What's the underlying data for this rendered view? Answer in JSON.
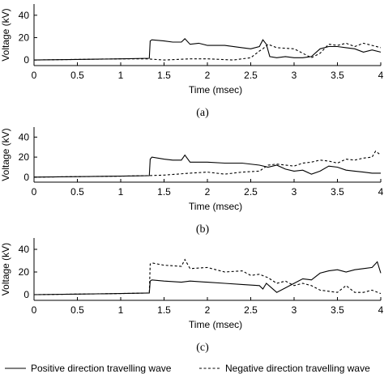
{
  "chart_data": [
    {
      "type": "line",
      "caption": "(a)",
      "xlabel": "Time (msec)",
      "ylabel": "Voltage (kV)",
      "xlim": [
        0,
        4
      ],
      "ylim": [
        -5,
        50
      ],
      "x_ticks": [
        0,
        0.5,
        1,
        1.5,
        2,
        2.5,
        3,
        3.5,
        4
      ],
      "x_tick_labels": [
        "0",
        "0.5",
        "1",
        "1.5",
        "2",
        "2.5",
        "3",
        "3.5",
        "4"
      ],
      "y_ticks": [
        0,
        20,
        40
      ],
      "y_tick_labels": [
        "0",
        "20",
        "40"
      ],
      "series": [
        {
          "name": "Positive direction travelling wave",
          "style": "solid",
          "x": [
            0,
            0.5,
            1.0,
            1.33,
            1.34,
            1.36,
            1.5,
            1.6,
            1.7,
            1.74,
            1.8,
            1.9,
            2.0,
            2.2,
            2.4,
            2.5,
            2.6,
            2.64,
            2.68,
            2.72,
            2.8,
            2.9,
            3.0,
            3.1,
            3.2,
            3.3,
            3.4,
            3.5,
            3.6,
            3.7,
            3.8,
            3.9,
            4.0
          ],
          "y": [
            0,
            0.5,
            1,
            1.5,
            17,
            18,
            17,
            16,
            16,
            19,
            14,
            15,
            13,
            13,
            11,
            10,
            12,
            18,
            14,
            3,
            2,
            3,
            2,
            2,
            3,
            10,
            12,
            12,
            11,
            10,
            7,
            9,
            7
          ]
        },
        {
          "name": "Negative direction travelling wave",
          "style": "dashed",
          "x": [
            0,
            0.5,
            1.0,
            1.3,
            1.5,
            1.8,
            2.0,
            2.3,
            2.5,
            2.6,
            2.64,
            2.7,
            2.8,
            3.0,
            3.1,
            3.2,
            3.3,
            3.4,
            3.5,
            3.6,
            3.7,
            3.8,
            3.9,
            4.0
          ],
          "y": [
            0,
            0.5,
            1,
            1,
            0,
            1,
            1,
            0,
            2,
            8,
            10,
            14,
            11,
            10,
            6,
            2,
            6,
            14,
            13,
            15,
            12,
            15,
            13,
            11
          ]
        }
      ]
    },
    {
      "type": "line",
      "caption": "(b)",
      "xlabel": "Time (msec)",
      "ylabel": "Voltage (kV)",
      "xlim": [
        0,
        4
      ],
      "ylim": [
        -5,
        50
      ],
      "x_ticks": [
        0,
        0.5,
        1,
        1.5,
        2,
        2.5,
        3,
        3.5,
        4
      ],
      "x_tick_labels": [
        "0",
        "0.5",
        "1",
        "1.5",
        "2",
        "2.5",
        "3",
        "3.5",
        "4"
      ],
      "y_ticks": [
        0,
        20,
        40
      ],
      "y_tick_labels": [
        "0",
        "20",
        "40"
      ],
      "series": [
        {
          "name": "Positive direction travelling wave",
          "style": "solid",
          "x": [
            0,
            0.5,
            1.0,
            1.33,
            1.34,
            1.36,
            1.5,
            1.6,
            1.7,
            1.74,
            1.8,
            2.0,
            2.2,
            2.4,
            2.6,
            2.7,
            2.8,
            2.9,
            3.0,
            3.1,
            3.2,
            3.3,
            3.4,
            3.5,
            3.6,
            3.7,
            3.8,
            3.9,
            4.0
          ],
          "y": [
            0,
            0.5,
            1,
            1.5,
            18,
            20,
            18,
            17,
            17,
            22,
            15,
            15,
            14,
            14,
            12,
            10,
            12,
            8,
            6,
            7,
            3,
            6,
            11,
            10,
            7,
            6,
            5,
            4,
            4
          ]
        },
        {
          "name": "Negative direction travelling wave",
          "style": "dashed",
          "x": [
            0,
            0.5,
            1.0,
            1.3,
            1.5,
            1.8,
            2.0,
            2.2,
            2.4,
            2.6,
            2.7,
            2.8,
            3.0,
            3.1,
            3.2,
            3.3,
            3.4,
            3.5,
            3.6,
            3.7,
            3.8,
            3.9,
            3.94,
            4.0
          ],
          "y": [
            0,
            0.5,
            1,
            1.5,
            2,
            4,
            5,
            3,
            5,
            6,
            12,
            13,
            11,
            14,
            15,
            17,
            16,
            14,
            18,
            17,
            19,
            20,
            26,
            22
          ]
        }
      ]
    },
    {
      "type": "line",
      "caption": "(c)",
      "xlabel": "Time (msec)",
      "ylabel": "Voltage (kV)",
      "xlim": [
        0,
        4
      ],
      "ylim": [
        -5,
        50
      ],
      "x_ticks": [
        0,
        0.5,
        1,
        1.5,
        2,
        2.5,
        3,
        3.5,
        4
      ],
      "x_tick_labels": [
        "0",
        "0.5",
        "1",
        "1.5",
        "2",
        "2.5",
        "3",
        "3.5",
        "4"
      ],
      "y_ticks": [
        0,
        20,
        40
      ],
      "y_tick_labels": [
        "0",
        "20",
        "40"
      ],
      "series": [
        {
          "name": "Positive direction travelling wave",
          "style": "solid",
          "x": [
            0,
            0.5,
            1.0,
            1.33,
            1.34,
            1.36,
            1.5,
            1.7,
            1.8,
            2.0,
            2.2,
            2.4,
            2.6,
            2.64,
            2.68,
            2.8,
            2.9,
            3.0,
            3.1,
            3.2,
            3.3,
            3.4,
            3.5,
            3.6,
            3.7,
            3.8,
            3.9,
            3.96,
            4.0
          ],
          "y": [
            0,
            0.5,
            1,
            1.5,
            12,
            13,
            12,
            11,
            12,
            11,
            10,
            9,
            8,
            5,
            10,
            2,
            6,
            10,
            14,
            13,
            19,
            21,
            22,
            20,
            22,
            23,
            24,
            29,
            19
          ]
        },
        {
          "name": "Negative direction travelling wave",
          "style": "dashed",
          "x": [
            0,
            0.5,
            1.0,
            1.33,
            1.34,
            1.36,
            1.5,
            1.7,
            1.74,
            1.8,
            2.0,
            2.2,
            2.4,
            2.5,
            2.6,
            2.7,
            2.8,
            2.9,
            3.0,
            3.1,
            3.2,
            3.3,
            3.4,
            3.5,
            3.6,
            3.7,
            3.8,
            3.9,
            4.0
          ],
          "y": [
            0,
            0.5,
            1,
            1.5,
            27,
            28,
            26,
            25,
            31,
            23,
            24,
            20,
            21,
            17,
            18,
            15,
            10,
            12,
            8,
            10,
            8,
            4,
            3,
            2,
            8,
            2,
            2,
            4,
            1
          ]
        }
      ]
    }
  ],
  "legend": {
    "position": "bottom",
    "items": [
      {
        "label": "Positive direction travelling wave",
        "style": "solid"
      },
      {
        "label": "Negative direction travelling wave",
        "style": "dashed"
      }
    ]
  }
}
